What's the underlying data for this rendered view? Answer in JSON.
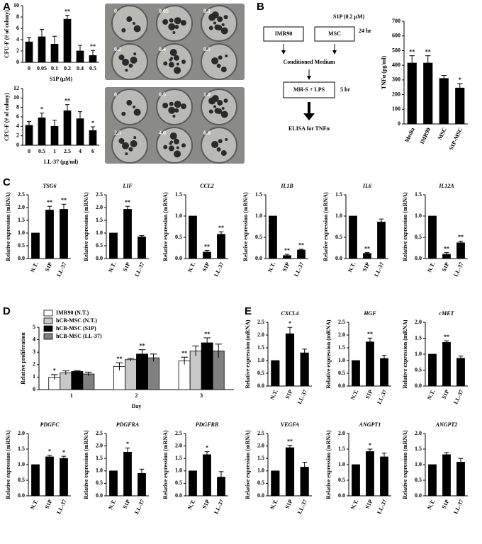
{
  "panels": [
    "A",
    "B",
    "C",
    "D",
    "E"
  ],
  "plates": [
    {
      "labels": [
        "0",
        "0.05",
        "0.1",
        "0.2",
        "0.4",
        "0.5"
      ]
    },
    {
      "labels": [
        "0",
        "0.5",
        "1.0",
        "2.5",
        "4.0",
        "6.0"
      ]
    }
  ],
  "diagram": {
    "treatment": "S1P (0.2 μM)",
    "cells": [
      "IMR90",
      "MSC"
    ],
    "time1": "24 hr",
    "step1": "Conditioned Medium",
    "step2": "MH-S + LPS",
    "time2": "5 hr",
    "step3": "ELISA for TNFα"
  },
  "chart_data": [
    {
      "type": "bar",
      "ylabel": "CFU-F (# of colony)",
      "xlabel": "S1P (μM)",
      "categories": [
        "0",
        "0.05",
        "0.1",
        "0.2",
        "0.4",
        "0.5"
      ],
      "values": [
        3.6,
        4.5,
        3.2,
        7.6,
        2.0,
        1.2
      ],
      "errors": [
        0.8,
        1.3,
        1.4,
        0.7,
        1.0,
        0.9
      ],
      "annotations": [
        null,
        null,
        null,
        "**",
        null,
        "**"
      ],
      "color": "#000000",
      "ylim": [
        0,
        10
      ],
      "yticks": [
        0,
        2,
        4,
        6,
        8,
        10
      ]
    },
    {
      "type": "bar",
      "ylabel": "CFU-F (# of colony)",
      "xlabel": "LL-37 (μg/ml)",
      "categories": [
        "0",
        "0.5",
        "1",
        "2.5",
        "4",
        "6"
      ],
      "values": [
        4.2,
        5.8,
        4.0,
        7.3,
        5.6,
        3.1
      ],
      "errors": [
        0.8,
        1.0,
        1.3,
        1.3,
        1.5,
        0.8
      ],
      "annotations": [
        null,
        "*",
        null,
        "**",
        null,
        "*"
      ],
      "color": "#000000",
      "ylim": [
        0,
        12
      ],
      "yticks": [
        0,
        2,
        4,
        6,
        8,
        10,
        12
      ]
    },
    {
      "type": "bar",
      "ylabel": "TNFα (pg/ml)",
      "categories": [
        "Media",
        "IMR90",
        "MSC",
        "S1P-MSC"
      ],
      "values": [
        415,
        415,
        310,
        245
      ],
      "errors": [
        50,
        50,
        20,
        30
      ],
      "annotations": [
        "**",
        "**",
        null,
        "*"
      ],
      "color": "#000000",
      "ylim": [
        0,
        700
      ],
      "yticks": [
        0,
        100,
        200,
        300,
        400,
        500,
        600,
        700
      ]
    },
    {
      "type": "bar",
      "title": "TSG6",
      "ylabel": "Relative expression (mRNA)",
      "categories": [
        "N.T.",
        "S1P",
        "LL-37"
      ],
      "values": [
        1,
        1.9,
        1.93
      ],
      "errors": [
        null,
        0.15,
        0.2
      ],
      "annotations": [
        null,
        "**",
        "**"
      ],
      "color": "#000000",
      "ylim": [
        0,
        2.5
      ],
      "yticks": [
        {
          "value": 0,
          "label": "0.0"
        },
        0.5,
        {
          "value": 1,
          "label": "1.0"
        },
        1.5,
        {
          "value": 2,
          "label": "2.0"
        },
        2.5
      ]
    },
    {
      "type": "bar",
      "title": "LIF",
      "ylabel": "Relative expression (mRNA)",
      "categories": [
        "N.T.",
        "S1P",
        "LL-37"
      ],
      "values": [
        1,
        1.93,
        0.85
      ],
      "errors": [
        null,
        0.12,
        0.05
      ],
      "annotations": [
        null,
        "**",
        null
      ],
      "color": "#000000",
      "ylim": [
        0,
        2.5
      ],
      "yticks": [
        {
          "value": 0,
          "label": "0.0"
        },
        0.5,
        {
          "value": 1,
          "label": "1.0"
        },
        1.5,
        {
          "value": 2,
          "label": "2.0"
        },
        2.5
      ]
    },
    {
      "type": "bar",
      "title": "CCL2",
      "ylabel": "Relative expression  (mRNA)",
      "categories": [
        "N.T.",
        "S1P",
        "LL-37"
      ],
      "values": [
        1,
        0.15,
        0.57
      ],
      "errors": [
        null,
        0.04,
        0.06
      ],
      "annotations": [
        null,
        "**",
        "**"
      ],
      "color": "#000000",
      "ylim": [
        0,
        1.5
      ],
      "yticks": [
        {
          "value": 0,
          "label": "0.0"
        },
        0.5,
        {
          "value": 1,
          "label": "1.0"
        },
        1.5
      ]
    },
    {
      "type": "bar",
      "title": "IL1B",
      "ylabel": "Relative expression  (mRNA)",
      "categories": [
        "N.T.",
        "S1P",
        "LL-37"
      ],
      "values": [
        1,
        0.07,
        0.2
      ],
      "errors": [
        null,
        0.03,
        0.02
      ],
      "annotations": [
        null,
        "**",
        "**"
      ],
      "color": "#000000",
      "ylim": [
        0,
        1.5
      ],
      "yticks": [
        {
          "value": 0,
          "label": "0.0"
        },
        0.5,
        {
          "value": 1,
          "label": "1.0"
        },
        1.5
      ]
    },
    {
      "type": "bar",
      "title": "IL6",
      "ylabel": "Relative expression (mRNA)",
      "categories": [
        "N.T.",
        "S1P",
        "LL-37"
      ],
      "values": [
        1,
        0.12,
        0.86
      ],
      "errors": [
        null,
        0.02,
        0.07
      ],
      "annotations": [
        null,
        "**",
        null
      ],
      "color": "#000000",
      "ylim": [
        0,
        1.5
      ],
      "yticks": [
        {
          "value": 0,
          "label": "0.0"
        },
        0.5,
        {
          "value": 1,
          "label": "1.0"
        },
        1.5
      ]
    },
    {
      "type": "bar",
      "title": "IL12A",
      "ylabel": "Relative expression (mRNA)",
      "categories": [
        "N.T.",
        "S1P",
        "LL-37"
      ],
      "values": [
        1,
        0.1,
        0.37
      ],
      "errors": [
        null,
        0.04,
        0.04
      ],
      "annotations": [
        null,
        "**",
        "**"
      ],
      "color": "#000000",
      "ylim": [
        0,
        1.5
      ],
      "yticks": [
        {
          "value": 0,
          "label": "0.0"
        },
        0.5,
        {
          "value": 1,
          "label": "1.0"
        },
        1.5
      ]
    },
    {
      "type": "bar",
      "ylabel": "Relative proliferation",
      "xlabel": "Day",
      "categories": [
        "1",
        "2",
        "3"
      ],
      "ylim": [
        0,
        5
      ],
      "yticks": [
        0,
        1,
        2,
        3,
        4,
        5
      ],
      "series": [
        {
          "name": "IMR90 (N.T.)",
          "color": "#ffffff",
          "values": [
            1.0,
            1.85,
            2.3
          ],
          "errors": [
            0.2,
            0.3,
            0.3
          ],
          "annotations": [
            "*",
            "**",
            "**"
          ]
        },
        {
          "name": "hCB-MSC (N.T.)",
          "color": "#c8c8c8",
          "values": [
            1.35,
            2.4,
            3.1
          ],
          "errors": [
            0.15,
            0.1,
            0.4
          ],
          "annotations": [
            null,
            null,
            null
          ]
        },
        {
          "name": "hCB-MSC (S1P)",
          "color": "#000000",
          "values": [
            1.45,
            2.85,
            3.75
          ],
          "errors": [
            0.08,
            0.35,
            0.4
          ],
          "annotations": [
            null,
            "**",
            "**"
          ]
        },
        {
          "name": "hCB-MSC (LL-37)",
          "color": "#808080",
          "values": [
            1.25,
            2.55,
            3.1
          ],
          "errors": [
            0.15,
            0.3,
            0.55
          ],
          "annotations": [
            null,
            null,
            null
          ]
        }
      ]
    },
    {
      "type": "bar",
      "title": "CXCL4",
      "ylabel": "Relative expression  (mRNA)",
      "categories": [
        "N.T.",
        "S1P",
        "LL-37"
      ],
      "values": [
        1,
        2.05,
        1.3
      ],
      "errors": [
        null,
        0.25,
        0.15
      ],
      "annotations": [
        null,
        "*",
        null
      ],
      "color": "#000000",
      "ylim": [
        0,
        2.5
      ],
      "yticks": [
        {
          "value": 0,
          "label": "0.0"
        },
        0.5,
        {
          "value": 1,
          "label": "1.0"
        },
        1.5,
        {
          "value": 2,
          "label": "2.0"
        },
        2.5
      ]
    },
    {
      "type": "bar",
      "title": "HGF",
      "ylabel": "Relative expression  (mRNA)",
      "categories": [
        "N.T.",
        "S1P",
        "LL-37"
      ],
      "values": [
        1,
        1.73,
        1.08
      ],
      "errors": [
        null,
        0.15,
        0.12
      ],
      "annotations": [
        null,
        "**",
        null
      ],
      "color": "#000000",
      "ylim": [
        0,
        2.5
      ],
      "yticks": [
        {
          "value": 0,
          "label": "0.0"
        },
        0.5,
        {
          "value": 1,
          "label": "1.0"
        },
        1.5,
        {
          "value": 2,
          "label": "2.0"
        },
        2.5
      ]
    },
    {
      "type": "bar",
      "title": "cMET",
      "ylabel": "Relative expression  (mRNA)",
      "categories": [
        "N.T.",
        "S1P",
        "LL-37"
      ],
      "values": [
        1,
        1.37,
        0.87
      ],
      "errors": [
        null,
        0.05,
        0.07
      ],
      "annotations": [
        null,
        "**",
        null
      ],
      "color": "#000000",
      "ylim": [
        0,
        2
      ],
      "yticks": [
        {
          "value": 0,
          "label": "0.0"
        },
        0.5,
        {
          "value": 1,
          "label": "1.0"
        },
        1.5,
        {
          "value": 2,
          "label": "2.0"
        }
      ]
    },
    {
      "type": "bar",
      "title": "PDGFC",
      "ylabel": "Relative expression  (mRNA)",
      "categories": [
        "N.T.",
        "S1P",
        "LL-37"
      ],
      "values": [
        1,
        1.25,
        1.2
      ],
      "errors": [
        null,
        0.05,
        0.07
      ],
      "annotations": [
        null,
        "*",
        "*"
      ],
      "color": "#000000",
      "ylim": [
        0,
        2
      ],
      "yticks": [
        {
          "value": 0,
          "label": "0.0"
        },
        0.5,
        {
          "value": 1,
          "label": "1.0"
        },
        1.5,
        {
          "value": 2,
          "label": "2.0"
        }
      ]
    },
    {
      "type": "bar",
      "title": "PDGFRA",
      "ylabel": "Relative expression  (mRNA)",
      "categories": [
        "N.T.",
        "S1P",
        "LL-37"
      ],
      "values": [
        1,
        1.75,
        0.9
      ],
      "errors": [
        null,
        0.17,
        0.17
      ],
      "annotations": [
        null,
        "*",
        null
      ],
      "color": "#000000",
      "ylim": [
        0,
        2.5
      ],
      "yticks": [
        {
          "value": 0,
          "label": "0.0"
        },
        0.5,
        {
          "value": 1,
          "label": "1.0"
        },
        1.5,
        {
          "value": 2,
          "label": "2.0"
        },
        2.5
      ]
    },
    {
      "type": "bar",
      "title": "PDGFRB",
      "ylabel": "Relative expression  (mRNA)",
      "categories": [
        "N.T.",
        "S1P",
        "LL-37"
      ],
      "values": [
        1,
        1.65,
        0.75
      ],
      "errors": [
        null,
        0.12,
        0.22
      ],
      "annotations": [
        null,
        "*",
        null
      ],
      "color": "#000000",
      "ylim": [
        0,
        2.5
      ],
      "yticks": [
        {
          "value": 0,
          "label": "0.0"
        },
        0.5,
        {
          "value": 1,
          "label": "1.0"
        },
        1.5,
        {
          "value": 2,
          "label": "2.0"
        },
        2.5
      ]
    },
    {
      "type": "bar",
      "title": "VEGFA",
      "ylabel": "Relative expression  (mRNA)",
      "categories": [
        "N.T.",
        "S1P",
        "LL-37"
      ],
      "values": [
        1,
        1.93,
        1.15
      ],
      "errors": [
        null,
        0.1,
        0.2
      ],
      "annotations": [
        null,
        "**",
        null
      ],
      "color": "#000000",
      "ylim": [
        0,
        2.5
      ],
      "yticks": [
        {
          "value": 0,
          "label": "0.0"
        },
        0.5,
        {
          "value": 1,
          "label": "1.0"
        },
        1.5,
        {
          "value": 2,
          "label": "2.0"
        },
        2.5
      ]
    },
    {
      "type": "bar",
      "title": "ANGPT1",
      "ylabel": "Relative expression  (mRNA)",
      "categories": [
        "N.T.",
        "S1P",
        "LL-37"
      ],
      "values": [
        1,
        1.42,
        1.25
      ],
      "errors": [
        null,
        0.08,
        0.12
      ],
      "annotations": [
        null,
        "*",
        null
      ],
      "color": "#000000",
      "ylim": [
        0,
        2
      ],
      "yticks": [
        {
          "value": 0,
          "label": "0.0"
        },
        0.5,
        {
          "value": 1,
          "label": "1.0"
        },
        1.5,
        {
          "value": 2,
          "label": "2.0"
        }
      ]
    },
    {
      "type": "bar",
      "title": "ANGPT2",
      "ylabel": "Relative expression  (mRNA)",
      "categories": [
        "N.T.",
        "S1P",
        "LL-37"
      ],
      "values": [
        1,
        1.32,
        1.08
      ],
      "errors": [
        null,
        0.07,
        0.12
      ],
      "annotations": [
        null,
        null,
        null
      ],
      "color": "#000000",
      "ylim": [
        0,
        2
      ],
      "yticks": [
        {
          "value": 0,
          "label": "0.0"
        },
        0.5,
        {
          "value": 1,
          "label": "1.0"
        },
        1.5,
        {
          "value": 2,
          "label": "2.0"
        }
      ]
    }
  ]
}
